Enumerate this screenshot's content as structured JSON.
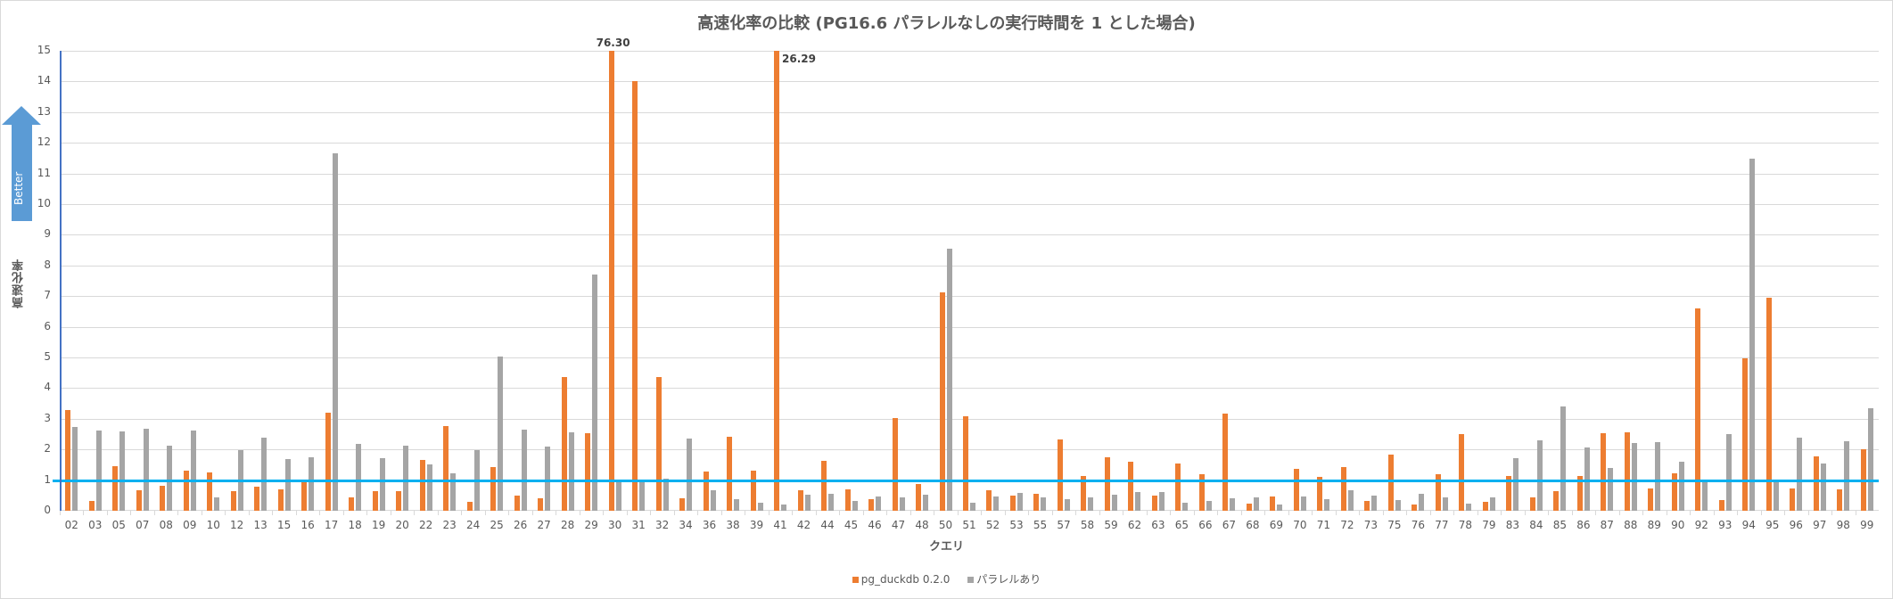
{
  "chart_data": {
    "type": "bar",
    "title": "高速化率の比較 (PG16.6 パラレルなしの実行時間を 1 とした場合)",
    "xlabel": "クエリ",
    "ylabel": "高速化率",
    "ylim": [
      0,
      15
    ],
    "yticks": [
      0,
      1,
      2,
      3,
      4,
      5,
      6,
      7,
      8,
      9,
      10,
      11,
      12,
      13,
      14,
      15
    ],
    "grid": true,
    "legend_position": "bottom",
    "reference_line": {
      "y": 1,
      "color": "#00b0f0"
    },
    "annotation_arrow": {
      "label": "Better",
      "color": "#5b9bd5"
    },
    "categories": [
      "02",
      "03",
      "05",
      "07",
      "08",
      "09",
      "10",
      "12",
      "13",
      "15",
      "16",
      "17",
      "18",
      "19",
      "20",
      "22",
      "23",
      "24",
      "25",
      "26",
      "27",
      "28",
      "29",
      "30",
      "31",
      "32",
      "34",
      "36",
      "38",
      "39",
      "41",
      "42",
      "44",
      "45",
      "46",
      "47",
      "48",
      "50",
      "51",
      "52",
      "53",
      "55",
      "57",
      "58",
      "59",
      "62",
      "63",
      "65",
      "66",
      "67",
      "68",
      "69",
      "70",
      "71",
      "72",
      "73",
      "75",
      "76",
      "77",
      "78",
      "79",
      "83",
      "84",
      "85",
      "86",
      "87",
      "88",
      "89",
      "90",
      "92",
      "93",
      "94",
      "95",
      "96",
      "97",
      "98",
      "99"
    ],
    "series": [
      {
        "name": "pg_duckdb 0.2.0",
        "color": "#ed7d31",
        "values": [
          3.29,
          0.31,
          1.46,
          0.66,
          0.81,
          1.31,
          1.25,
          0.63,
          0.78,
          0.69,
          0.96,
          3.21,
          0.43,
          0.63,
          0.63,
          1.66,
          2.77,
          0.28,
          1.42,
          0.49,
          0.4,
          4.35,
          2.53,
          76.3,
          14.0,
          4.35,
          0.4,
          1.28,
          2.42,
          1.31,
          26.29,
          0.66,
          1.63,
          0.69,
          0.37,
          3.03,
          0.87,
          7.12,
          3.09,
          0.66,
          0.49,
          0.55,
          2.33,
          1.13,
          1.74,
          1.6,
          0.49,
          1.54,
          1.19,
          3.18,
          0.22,
          0.46,
          1.36,
          1.1,
          1.42,
          0.31,
          1.83,
          0.19,
          1.19,
          2.5,
          0.28,
          1.13,
          0.43,
          0.63,
          1.13,
          2.53,
          2.56,
          0.72,
          1.22,
          6.6,
          0.34,
          4.96,
          6.95,
          0.72,
          1.77,
          0.69,
          2.01
        ]
      },
      {
        "name": "パラレルあり",
        "color": "#a5a5a5",
        "values": [
          2.74,
          2.62,
          2.59,
          2.68,
          2.12,
          2.62,
          0.43,
          1.98,
          2.39,
          1.69,
          1.74,
          11.65,
          2.18,
          1.72,
          2.12,
          1.51,
          1.22,
          1.98,
          5.02,
          2.65,
          2.1,
          2.56,
          7.7,
          0.98,
          0.98,
          1.04,
          2.36,
          0.66,
          0.37,
          0.25,
          0.19,
          0.52,
          0.55,
          0.31,
          0.46,
          0.43,
          0.52,
          8.55,
          0.25,
          0.46,
          0.58,
          0.43,
          0.37,
          0.43,
          0.52,
          0.6,
          0.6,
          0.25,
          0.31,
          0.4,
          0.43,
          0.19,
          0.46,
          0.37,
          0.66,
          0.49,
          0.34,
          0.55,
          0.43,
          0.22,
          0.43,
          1.72,
          2.3,
          3.41,
          2.07,
          1.39,
          2.21,
          2.24,
          1.6,
          0.96,
          2.5,
          11.47,
          0.96,
          2.39,
          1.54,
          2.27,
          3.35
        ]
      }
    ],
    "data_labels": [
      {
        "category": "30",
        "series": "pg_duckdb 0.2.0",
        "text": "76.30"
      },
      {
        "category": "41",
        "series": "pg_duckdb 0.2.0",
        "text": "26.29"
      }
    ]
  },
  "labels": {
    "title": "高速化率の比較 (PG16.6 パラレルなしの実行時間を 1 とした場合)",
    "xlabel": "クエリ",
    "ylabel": "高速化率",
    "better": "Better",
    "legend_0": "pg_duckdb 0.2.0",
    "legend_1": "パラレルあり"
  }
}
